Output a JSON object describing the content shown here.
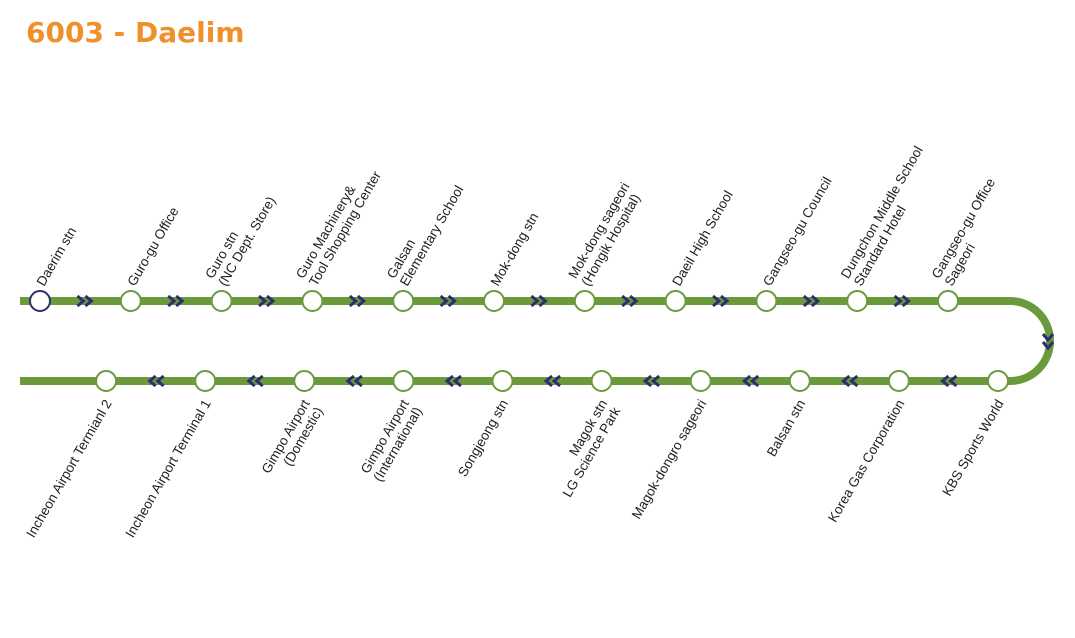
{
  "title": "6003 - Daelim",
  "colors": {
    "line": "#6a9a3c",
    "arrow": "#2e2e6e",
    "start_station": "#2e2e6e",
    "title": "#f0902a"
  },
  "outbound_stations": [
    {
      "lines": [
        "Daerim stn"
      ],
      "start": true
    },
    {
      "lines": [
        "Guro-gu Office"
      ]
    },
    {
      "lines": [
        "Guro stn",
        "(NC Dept. Store)"
      ]
    },
    {
      "lines": [
        "Guro Machinery&",
        "Tool Shopping Center"
      ]
    },
    {
      "lines": [
        "Galsan",
        "Elementary School"
      ]
    },
    {
      "lines": [
        "Mok-dong stn"
      ]
    },
    {
      "lines": [
        "Mok-dong sageori",
        "(Hongik Hospital)"
      ]
    },
    {
      "lines": [
        "Daeil High School"
      ]
    },
    {
      "lines": [
        "Gangseo-gu Council"
      ]
    },
    {
      "lines": [
        "Dungchon Middle School",
        "Standard Hotel"
      ]
    },
    {
      "lines": [
        "Gangseo-gu Office",
        "Sageori"
      ]
    }
  ],
  "return_stations": [
    {
      "lines": [
        "KBS Sports World"
      ]
    },
    {
      "lines": [
        "Korea Gas Corporation"
      ]
    },
    {
      "lines": [
        "Balsan stn"
      ]
    },
    {
      "lines": [
        "Magok-dongro sageori"
      ]
    },
    {
      "lines": [
        "Magok stn",
        "LG Science Park"
      ]
    },
    {
      "lines": [
        "Songjeong stn"
      ]
    },
    {
      "lines": [
        "Gimpo Airport",
        "(International)"
      ]
    },
    {
      "lines": [
        "Gimpo Airport",
        "(Domestic)"
      ]
    },
    {
      "lines": [
        "Incheon Airport Terminal 1"
      ]
    },
    {
      "lines": [
        "Incheon Airport Termianl 2"
      ]
    }
  ]
}
